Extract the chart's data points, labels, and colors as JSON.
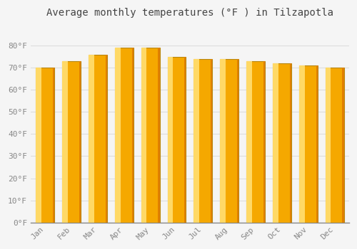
{
  "title": "Average monthly temperatures (°F ) in Tilzapotla",
  "months": [
    "Jan",
    "Feb",
    "Mar",
    "Apr",
    "May",
    "Jun",
    "Jul",
    "Aug",
    "Sep",
    "Oct",
    "Nov",
    "Dec"
  ],
  "values": [
    70,
    73,
    76,
    79,
    79,
    75,
    74,
    74,
    73,
    72,
    71,
    70
  ],
  "bar_color_main": "#F5A800",
  "bar_color_light": "#FFD966",
  "bar_color_dark": "#E08000",
  "bar_edge_color": "#B8860B",
  "background_color": "#F5F5F5",
  "plot_bg_color": "#F5F5F5",
  "grid_color": "#DDDDDD",
  "ylim": [
    0,
    90
  ],
  "yticks": [
    0,
    10,
    20,
    30,
    40,
    50,
    60,
    70,
    80
  ],
  "title_fontsize": 10,
  "tick_fontsize": 8,
  "tick_color": "#888888",
  "bar_width": 0.7
}
